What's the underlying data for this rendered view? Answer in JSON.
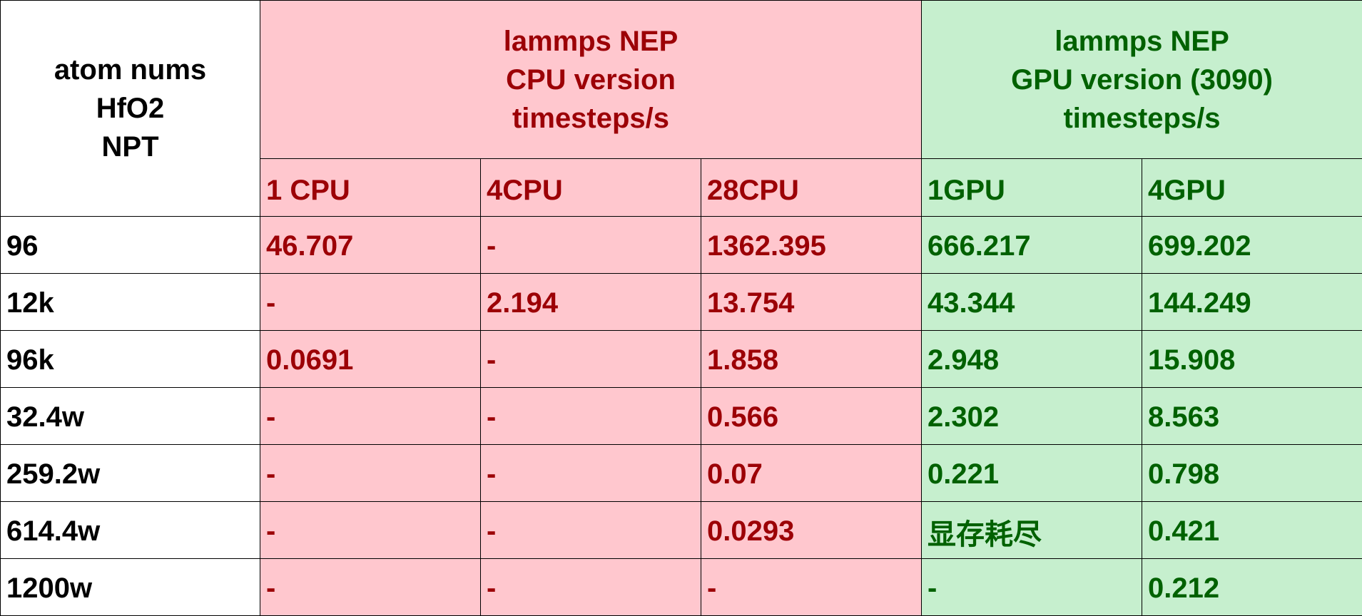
{
  "header": {
    "corner_lines": [
      "atom nums",
      "HfO2",
      "NPT"
    ],
    "cpu_group_lines": [
      "lammps NEP",
      "CPU version",
      "timesteps/s"
    ],
    "gpu_group_lines": [
      "lammps NEP",
      "GPU version (3090)",
      "timesteps/s"
    ],
    "subheaders": [
      "1 CPU",
      "4CPU",
      "28CPU",
      "1GPU",
      "4GPU"
    ]
  },
  "colors": {
    "cpu_fill": "#ffc7ce",
    "cpu_text": "#9c0006",
    "gpu_fill": "#c6efce",
    "gpu_text": "#006100"
  },
  "chart_data": {
    "type": "table",
    "columns": [
      "1 CPU",
      "4CPU",
      "28CPU",
      "1GPU",
      "4GPU"
    ],
    "rows": [
      {
        "label": "96",
        "values": [
          "46.707",
          "-",
          "1362.395",
          "666.217",
          "699.202"
        ]
      },
      {
        "label": "12k",
        "values": [
          "-",
          "2.194",
          "13.754",
          "43.344",
          "144.249"
        ]
      },
      {
        "label": "96k",
        "values": [
          "0.0691",
          "-",
          "1.858",
          "2.948",
          "15.908"
        ]
      },
      {
        "label": "32.4w",
        "values": [
          "-",
          "-",
          "0.566",
          "2.302",
          "8.563"
        ]
      },
      {
        "label": "259.2w",
        "values": [
          "-",
          "-",
          "0.07",
          "0.221",
          "0.798"
        ]
      },
      {
        "label": "614.4w",
        "values": [
          "-",
          "-",
          "0.0293",
          "显存耗尽",
          "0.421"
        ]
      },
      {
        "label": "1200w",
        "values": [
          "-",
          "-",
          "-",
          "-",
          "0.212"
        ]
      }
    ]
  }
}
